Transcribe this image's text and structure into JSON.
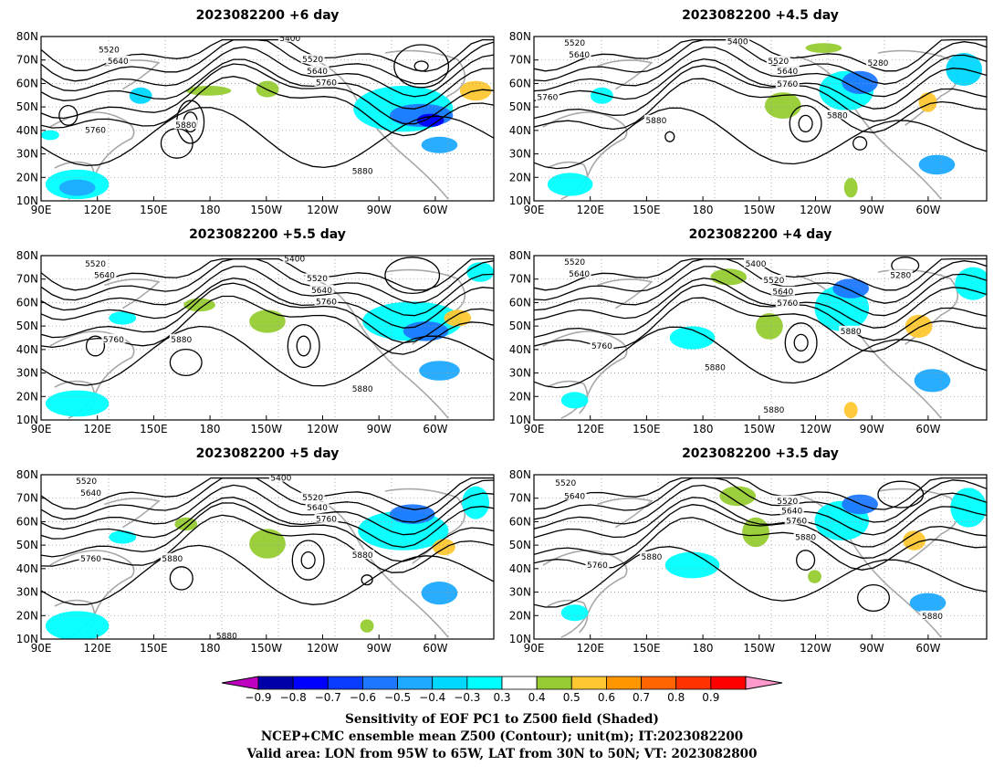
{
  "panels": [
    {
      "title": "2023082200  +6  day",
      "contour_labels": [
        "5520",
        "5640",
        "5760",
        "5880",
        "5400",
        "5520",
        "5640",
        "5760",
        "5880"
      ]
    },
    {
      "title": "2023082200  +4.5  day",
      "contour_labels": [
        "5520",
        "5640",
        "5760",
        "5880",
        "5400",
        "5520",
        "5640",
        "5760",
        "5880",
        "5280"
      ]
    },
    {
      "title": "2023082200  +5.5  day",
      "contour_labels": [
        "5520",
        "5640",
        "5760",
        "5880",
        "5400",
        "5520",
        "5640",
        "5760",
        "5880"
      ]
    },
    {
      "title": "2023082200  +4  day",
      "contour_labels": [
        "5520",
        "5640",
        "5760",
        "5880",
        "5400",
        "5520",
        "5640",
        "5760",
        "5880",
        "5280",
        "5880"
      ]
    },
    {
      "title": "2023082200  +5  day",
      "contour_labels": [
        "5520",
        "5640",
        "5760",
        "5880",
        "5400",
        "5520",
        "5640",
        "5760",
        "5880",
        "5880"
      ]
    },
    {
      "title": "2023082200  +3.5  day",
      "contour_labels": [
        "5520",
        "5640",
        "5760",
        "5880",
        "5520",
        "5640",
        "5760",
        "5880",
        "5880"
      ]
    }
  ],
  "axes": {
    "lat_labels": [
      "80N",
      "70N",
      "60N",
      "50N",
      "40N",
      "30N",
      "20N",
      "10N"
    ],
    "lon_labels": [
      "90E",
      "120E",
      "150E",
      "180",
      "150W",
      "120W",
      "90W",
      "60W"
    ]
  },
  "colorbar": {
    "ticks": [
      "−0.9",
      "−0.8",
      "−0.7",
      "−0.6",
      "−0.5",
      "−0.4",
      "−0.3",
      "0.3",
      "0.4",
      "0.5",
      "0.6",
      "0.7",
      "0.8",
      "0.9"
    ],
    "colors": [
      "#c000c0",
      "#0000a8",
      "#0000ff",
      "#0a3cff",
      "#1e78ff",
      "#1eaaff",
      "#00d8ff",
      "#00ffff",
      "#ffffff",
      "#96cc32",
      "#ffc832",
      "#ff9600",
      "#ff6400",
      "#ff3200",
      "#ff0000",
      "#ff99cc"
    ]
  },
  "footer": [
    "Sensitivity of EOF PC1 to Z500 field (Shaded)",
    "NCEP+CMC ensemble mean Z500 (Contour); unit(m); IT:2023082200",
    "Valid area: LON from 95W to 65W, LAT from 30N to 50N; VT: 2023082800"
  ]
}
